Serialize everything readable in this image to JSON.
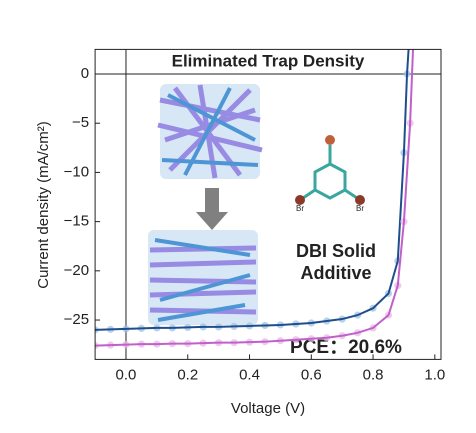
{
  "chart_data": {
    "type": "line",
    "xlabel": "Voltage (V)",
    "ylabel": "Current density (mA/cm²)",
    "xlim": [
      -0.1,
      1.02
    ],
    "ylim": [
      -29,
      2.5
    ],
    "xticks": [
      {
        "value": 0,
        "label": "0.0"
      },
      0.2,
      0.4,
      0.6,
      0.8,
      {
        "value": 1,
        "label": "1.0"
      }
    ],
    "yticks": [
      0,
      {
        "value": -5,
        "label": "−5"
      },
      {
        "value": -10,
        "label": "−10"
      },
      {
        "value": -15,
        "label": "−15"
      },
      {
        "value": -20,
        "label": "−20"
      },
      {
        "value": -25,
        "label": "−25"
      }
    ],
    "series": [
      {
        "color": "#1f4e8c",
        "marker_color": "#9ec3e6",
        "x": [
          -0.1,
          -0.05,
          0,
          0.05,
          0.1,
          0.15,
          0.2,
          0.25,
          0.3,
          0.35,
          0.4,
          0.45,
          0.5,
          0.55,
          0.6,
          0.65,
          0.7,
          0.75,
          0.8,
          0.85,
          0.88,
          0.9,
          0.91,
          0.92
        ],
        "values": [
          -26,
          -25.95,
          -25.9,
          -25.85,
          -25.8,
          -25.8,
          -25.75,
          -25.7,
          -25.7,
          -25.65,
          -25.6,
          -25.55,
          -25.5,
          -25.4,
          -25.3,
          -25.1,
          -24.9,
          -24.5,
          -23.8,
          -22.3,
          -19,
          -8,
          0,
          5
        ]
      },
      {
        "color": "#c060c8",
        "marker_color": "#e8b8ea",
        "x": [
          -0.1,
          -0.05,
          0,
          0.05,
          0.1,
          0.15,
          0.2,
          0.25,
          0.3,
          0.35,
          0.4,
          0.45,
          0.5,
          0.55,
          0.6,
          0.65,
          0.7,
          0.75,
          0.8,
          0.85,
          0.88,
          0.9,
          0.92,
          0.93
        ],
        "values": [
          -27.6,
          -27.55,
          -27.5,
          -27.45,
          -27.45,
          -27.4,
          -27.4,
          -27.35,
          -27.3,
          -27.3,
          -27.25,
          -27.2,
          -27.1,
          -27,
          -26.9,
          -26.8,
          -26.6,
          -26.3,
          -25.8,
          -24.5,
          -21.5,
          -15,
          -5,
          3
        ]
      }
    ],
    "annotations": [
      "Eliminated Trap Density",
      "DBI Solid",
      "Additive",
      "PCE：20.6%"
    ],
    "molecule_labels": [
      "Br",
      "Br"
    ]
  }
}
